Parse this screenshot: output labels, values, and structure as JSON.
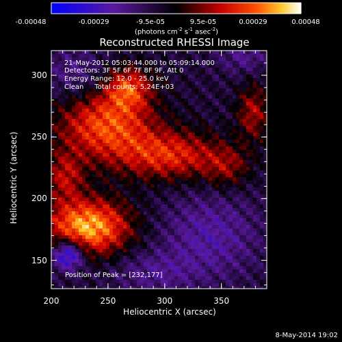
{
  "chart_data": {
    "type": "heatmap",
    "title": "Reconstructed RHESSI Image",
    "xlabel": "Heliocentric X (arcsec)",
    "ylabel": "Heliocentric Y (arcsec)",
    "xlim": [
      200,
      390
    ],
    "ylim": [
      127,
      320
    ],
    "x_ticks": [
      200,
      250,
      300,
      350
    ],
    "y_ticks": [
      150,
      200,
      250,
      300
    ],
    "colorbar": {
      "ticks": [
        "-0.00048",
        "-0.00029",
        "-9.5e-05",
        "9.5e-05",
        "0.00029",
        "0.00048"
      ],
      "range": [
        -0.00048,
        0.00048
      ],
      "unit_parts": [
        "(photons cm",
        "-2",
        " s",
        "-1",
        " asec",
        "-2",
        ")"
      ]
    },
    "info_lines": [
      "21-May-2012 05:03:44.000 to 05:09:14.000",
      "Detectors: 3F 5F 6F 7F 8F 9F, Att 0",
      "Energy Range: 12.0 - 25.0 keV",
      "Clean     Total counts: 5.24E+03"
    ],
    "peak_label": "Position of Peak = [232,177]",
    "peak_position": [
      232,
      177
    ],
    "sources": [
      {
        "x": 232,
        "y": 177,
        "sx": 26,
        "sy": 16,
        "amp": 0.00048
      },
      {
        "x": 248,
        "y": 260,
        "sx": 30,
        "sy": 20,
        "amp": 0.00036
      },
      {
        "x": 268,
        "y": 290,
        "sx": 14,
        "sy": 12,
        "amp": 0.0003
      },
      {
        "x": 305,
        "y": 235,
        "sx": 32,
        "sy": 14,
        "amp": 0.0003
      },
      {
        "x": 212,
        "y": 218,
        "sx": 12,
        "sy": 14,
        "amp": 0.00022
      },
      {
        "x": 378,
        "y": 270,
        "sx": 10,
        "sy": 16,
        "amp": 0.00022
      },
      {
        "x": 355,
        "y": 225,
        "sx": 14,
        "sy": 12,
        "amp": 0.00016
      },
      {
        "x": 215,
        "y": 155,
        "sx": 10,
        "sy": 9,
        "amp": -0.0004
      },
      {
        "x": 340,
        "y": 170,
        "sx": 30,
        "sy": 24,
        "amp": -0.00016
      },
      {
        "x": 290,
        "y": 140,
        "sx": 26,
        "sy": 12,
        "amp": -0.00012
      },
      {
        "x": 220,
        "y": 300,
        "sx": 20,
        "sy": 16,
        "amp": -0.00012
      },
      {
        "x": 370,
        "y": 315,
        "sx": 16,
        "sy": 10,
        "amp": -0.00012
      }
    ]
  },
  "timestamp": "8-May-2014 19:02"
}
